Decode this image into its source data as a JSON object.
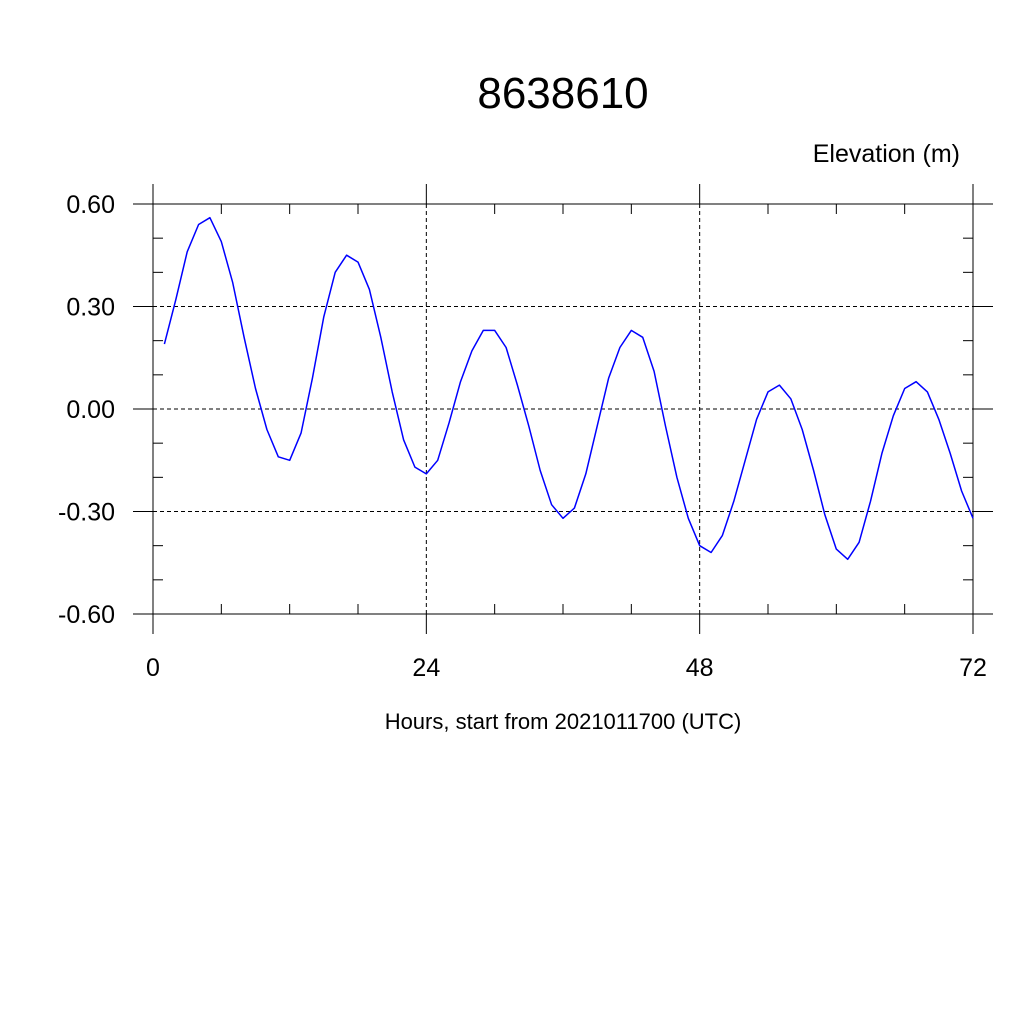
{
  "chart_data": {
    "type": "line",
    "title": "8638610",
    "ylabel": "Elevation (m)",
    "xlabel": "Hours, start from 2021011700 (UTC)",
    "xlim": [
      0,
      72
    ],
    "ylim": [
      -0.6,
      0.6
    ],
    "x_ticks": [
      0,
      24,
      48,
      72
    ],
    "x_tick_labels": [
      "0",
      "24",
      "48",
      "72"
    ],
    "y_ticks": [
      -0.6,
      -0.3,
      0.0,
      0.3,
      0.6
    ],
    "y_tick_labels": [
      "-0.60",
      "-0.30",
      "0.00",
      "0.30",
      "0.60"
    ],
    "grid": true,
    "line_color": "#0000ff",
    "series": [
      {
        "x": [
          1,
          2,
          3,
          4,
          5,
          6,
          7,
          8,
          9,
          10,
          11,
          12,
          13,
          14,
          15,
          16,
          17,
          18,
          19,
          20,
          21,
          22,
          23,
          24,
          25,
          26,
          27,
          28,
          29,
          30,
          31,
          32,
          33,
          34,
          35,
          36,
          37,
          38,
          39,
          40,
          41,
          42,
          43,
          44,
          45,
          46,
          47,
          48,
          49,
          50,
          51,
          52,
          53,
          54,
          55,
          56,
          57,
          58,
          59,
          60,
          61,
          62,
          63,
          64,
          65,
          66,
          67,
          68,
          69,
          70,
          71,
          72
        ],
        "values": [
          0.19,
          0.32,
          0.46,
          0.54,
          0.56,
          0.49,
          0.37,
          0.21,
          0.06,
          -0.06,
          -0.14,
          -0.15,
          -0.07,
          0.09,
          0.27,
          0.4,
          0.45,
          0.43,
          0.35,
          0.21,
          0.05,
          -0.09,
          -0.17,
          -0.19,
          -0.15,
          -0.04,
          0.08,
          0.17,
          0.23,
          0.23,
          0.18,
          0.07,
          -0.05,
          -0.18,
          -0.28,
          -0.32,
          -0.29,
          -0.19,
          -0.05,
          0.09,
          0.18,
          0.23,
          0.21,
          0.11,
          -0.05,
          -0.2,
          -0.32,
          -0.4,
          -0.42,
          -0.37,
          -0.27,
          -0.15,
          -0.03,
          0.05,
          0.07,
          0.03,
          -0.06,
          -0.18,
          -0.31,
          -0.41,
          -0.44,
          -0.39,
          -0.27,
          -0.13,
          -0.02,
          0.06,
          0.08,
          0.05,
          -0.03,
          -0.13,
          -0.24,
          -0.32
        ]
      }
    ]
  }
}
